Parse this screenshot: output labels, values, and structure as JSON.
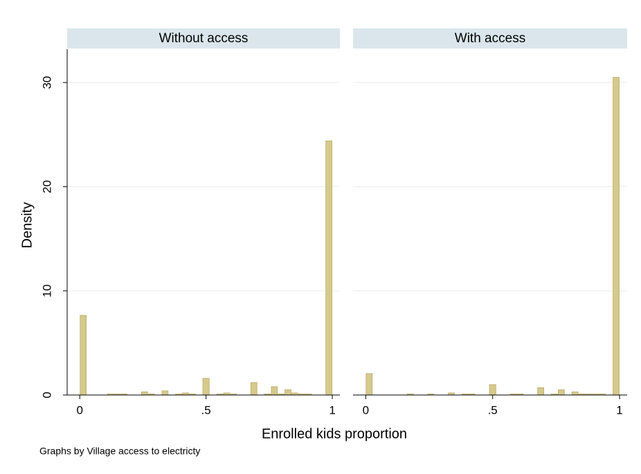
{
  "chart_data": [
    {
      "type": "histogram",
      "title": "Without access",
      "bins": [
        0,
        0.027,
        0.054,
        0.081,
        0.108,
        0.135,
        0.162,
        0.189,
        0.216,
        0.243,
        0.27,
        0.297,
        0.324,
        0.351,
        0.378,
        0.405,
        0.432,
        0.459,
        0.486,
        0.514,
        0.541,
        0.568,
        0.595,
        0.622,
        0.649,
        0.676,
        0.703,
        0.73,
        0.757,
        0.784,
        0.811,
        0.838,
        0.865,
        0.892,
        0.919,
        0.946,
        0.973,
        1
      ],
      "values": [
        7.65,
        0,
        0,
        0,
        0.1,
        0.1,
        0.1,
        0,
        0,
        0.3,
        0.1,
        0,
        0.4,
        0,
        0.1,
        0.2,
        0.1,
        0,
        1.6,
        0,
        0.1,
        0.2,
        0.1,
        0,
        0,
        1.2,
        0,
        0.1,
        0.8,
        0.1,
        0.5,
        0.2,
        0.1,
        0.1,
        0,
        0,
        24.4
      ],
      "color": "#d5c98c",
      "xlim": [
        -0.05,
        1.03
      ],
      "xticks": [
        0,
        {
          "value": 0.5,
          "label": ".5"
        },
        1
      ],
      "ylim": [
        0,
        33.2
      ],
      "yticks": [
        0,
        10,
        20,
        30
      ],
      "grid": true,
      "y_label": "Density"
    },
    {
      "type": "histogram",
      "title": "With access",
      "bins": [
        0,
        0.027,
        0.054,
        0.081,
        0.108,
        0.135,
        0.162,
        0.189,
        0.216,
        0.243,
        0.27,
        0.297,
        0.324,
        0.351,
        0.378,
        0.405,
        0.432,
        0.459,
        0.486,
        0.514,
        0.541,
        0.568,
        0.595,
        0.622,
        0.649,
        0.676,
        0.703,
        0.73,
        0.757,
        0.784,
        0.811,
        0.838,
        0.865,
        0.892,
        0.919,
        0.946,
        0.973,
        1
      ],
      "values": [
        2.06,
        0,
        0,
        0,
        0,
        0,
        0.1,
        0,
        0,
        0.1,
        0,
        0,
        0.2,
        0,
        0.1,
        0.1,
        0,
        0,
        1.0,
        0,
        0,
        0.1,
        0.1,
        0,
        0,
        0.7,
        0,
        0.1,
        0.5,
        0,
        0.3,
        0.1,
        0.1,
        0.1,
        0.1,
        0,
        30.5
      ],
      "color": "#d5c98c",
      "xlim": [
        -0.05,
        1.03
      ],
      "xticks": [
        0,
        {
          "value": 0.5,
          "label": ".5"
        },
        1
      ],
      "ylim": [
        0,
        33.2
      ],
      "yticks": [
        0,
        10,
        20,
        30
      ],
      "grid": true
    }
  ],
  "x_label": "Enrolled kids proportion",
  "note": "Graphs by Village access to electricty"
}
